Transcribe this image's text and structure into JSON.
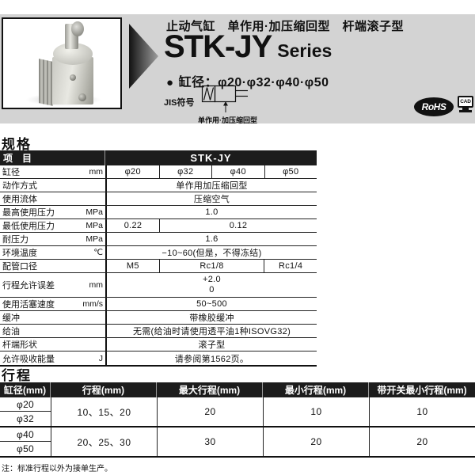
{
  "header": {
    "subtitle": "止动气缸　单作用·加压缩回型　杆端滚子型",
    "series_code": "STK-JY",
    "series_word": "Series",
    "bore_bullet": "●",
    "bore_line": "缸径：φ20·φ32·φ40·φ50",
    "jis_label": "JIS符号",
    "jis_caption": "单作用·加压缩回型",
    "rohs_label": "RoHS",
    "cad_label": "CAD"
  },
  "spec_section": {
    "title": "规格"
  },
  "spec_table": {
    "header_item": "项　目",
    "header_series": "STK-JY",
    "rows": [
      {
        "label": "缸径",
        "unit": "mm",
        "cells": [
          {
            "text": "φ20",
            "span": 1
          },
          {
            "text": "φ32",
            "span": 1
          },
          {
            "text": "φ40",
            "span": 1
          },
          {
            "text": "φ50",
            "span": 1
          }
        ]
      },
      {
        "label": "动作方式",
        "unit": "",
        "cells": [
          {
            "text": "单作用加压缩回型",
            "span": 4
          }
        ]
      },
      {
        "label": "使用流体",
        "unit": "",
        "cells": [
          {
            "text": "压缩空气",
            "span": 4
          }
        ]
      },
      {
        "label": "最高使用压力",
        "unit": "MPa",
        "cells": [
          {
            "text": "1.0",
            "span": 4
          }
        ]
      },
      {
        "label": "最低使用压力",
        "unit": "MPa",
        "cells": [
          {
            "text": "0.22",
            "span": 1
          },
          {
            "text": "0.12",
            "span": 3
          }
        ]
      },
      {
        "label": "耐压力",
        "unit": "MPa",
        "cells": [
          {
            "text": "1.6",
            "span": 4
          }
        ]
      },
      {
        "label": "环境温度",
        "unit": "℃",
        "cells": [
          {
            "text": "−10~60(但是，不得冻结)",
            "span": 4
          }
        ]
      },
      {
        "label": "配管口径",
        "unit": "",
        "cells": [
          {
            "text": "M5",
            "span": 1
          },
          {
            "text": "Rc1/8",
            "span": 2
          },
          {
            "text": "Rc1/4",
            "span": 1
          }
        ]
      },
      {
        "label": "行程允许误差",
        "unit": "mm",
        "cells": [
          {
            "lines": [
              "+2.0",
              "0"
            ],
            "span": 4
          }
        ]
      },
      {
        "label": "使用活塞速度",
        "unit": "mm/s",
        "cells": [
          {
            "text": "50~500",
            "span": 4
          }
        ]
      },
      {
        "label": "缓冲",
        "unit": "",
        "cells": [
          {
            "text": "带橡胶缓冲",
            "span": 4
          }
        ]
      },
      {
        "label": "给油",
        "unit": "",
        "cells": [
          {
            "text": "无需(给油时请使用透平油1种ISOVG32)",
            "span": 4
          }
        ]
      },
      {
        "label": "杆端形状",
        "unit": "",
        "cells": [
          {
            "text": "滚子型",
            "span": 4
          }
        ]
      },
      {
        "label": "允许吸收能量",
        "unit": "J",
        "cells": [
          {
            "text": "请参阅第1562页。",
            "span": 4
          }
        ]
      }
    ]
  },
  "stroke_section": {
    "title": "行程"
  },
  "stroke_table": {
    "headers": [
      "缸径(mm)",
      "行程(mm)",
      "最大行程(mm)",
      "最小行程(mm)",
      "带开关最小行程(mm)"
    ],
    "groups": [
      {
        "bores": [
          "φ20",
          "φ32"
        ],
        "stroke": "10、15、20",
        "max_stroke": "20",
        "min_stroke": "10",
        "switch_min_stroke": "10"
      },
      {
        "bores": [
          "φ40",
          "φ50"
        ],
        "stroke": "20、25、30",
        "max_stroke": "30",
        "min_stroke": "20",
        "switch_min_stroke": "20"
      }
    ]
  },
  "footnote": "注：标准行程以外为接单生产。"
}
